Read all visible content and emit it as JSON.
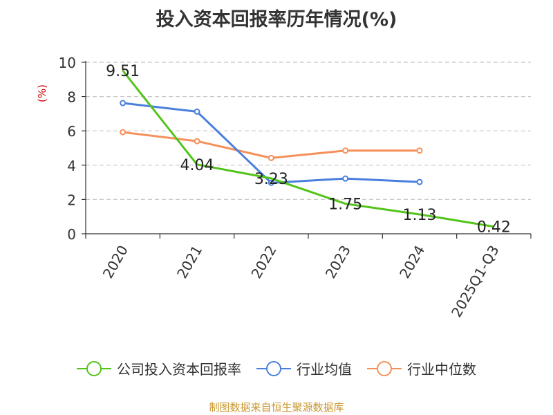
{
  "title": "投入资本回报率历年情况(%)",
  "y_unit": "(%)",
  "source": "制图数据来自恒生聚源数据库",
  "chart_data": {
    "type": "line",
    "categories": [
      "2020",
      "2021",
      "2022",
      "2023",
      "2024",
      "2025Q1-Q3"
    ],
    "ylim": [
      0,
      10
    ],
    "yticks": [
      0,
      2,
      4,
      6,
      8,
      10
    ],
    "grid": true,
    "legend_position": "bottom",
    "series": [
      {
        "name": "公司投入资本回报率",
        "color": "#52c41a",
        "values": [
          9.51,
          4.04,
          3.23,
          1.75,
          1.13,
          0.42
        ],
        "labels": [
          "9.51",
          "4.04",
          "3.23",
          "1.75",
          "1.13",
          "0.42"
        ]
      },
      {
        "name": "行业均值",
        "color": "#4a7fdc",
        "values": [
          7.62,
          7.12,
          2.97,
          3.22,
          3.02,
          null
        ]
      },
      {
        "name": "行业中位数",
        "color": "#f5905a",
        "values": [
          5.92,
          5.4,
          4.42,
          4.85,
          4.85,
          null
        ]
      }
    ]
  }
}
